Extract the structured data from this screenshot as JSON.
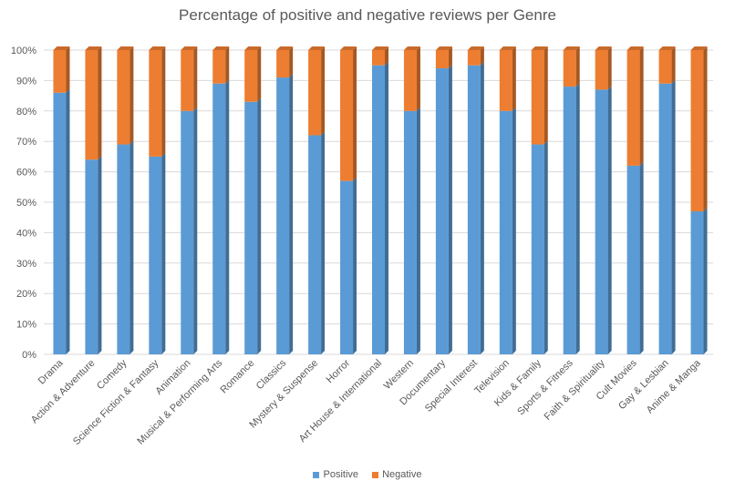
{
  "chart_data": {
    "type": "bar",
    "stacked": true,
    "percent_stacked": true,
    "title": "Percentage of positive and negative reviews per Genre",
    "xlabel": "",
    "ylabel": "",
    "ylim": [
      0,
      100
    ],
    "yticks": [
      "0%",
      "10%",
      "20%",
      "30%",
      "40%",
      "50%",
      "60%",
      "70%",
      "80%",
      "90%",
      "100%"
    ],
    "grid": true,
    "legend_position": "bottom",
    "categories": [
      "Drama",
      "Action & Adventure",
      "Comedy",
      "Science Fiction & Fantasy",
      "Animation",
      "Musical & Performing Arts",
      "Romance",
      "Classics",
      "Mystery & Suspense",
      "Horror",
      "Art House & International",
      "Western",
      "Documentary",
      "Special Interest",
      "Television",
      "Kids & Family",
      "Sports & Fitness",
      "Faith & Spirituality",
      "Cult Movies",
      "Gay & Lesbian",
      "Anime & Manga"
    ],
    "series": [
      {
        "name": "Positive",
        "color": "#5b9bd5",
        "values": [
          86,
          64,
          69,
          65,
          80,
          89,
          83,
          91,
          72,
          57,
          95,
          80,
          94,
          95,
          80,
          69,
          88,
          87,
          62,
          89,
          47
        ]
      },
      {
        "name": "Negative",
        "color": "#ed7d31",
        "values": [
          14,
          36,
          31,
          35,
          20,
          11,
          17,
          9,
          28,
          43,
          5,
          20,
          6,
          5,
          20,
          31,
          12,
          13,
          38,
          11,
          53
        ]
      }
    ]
  }
}
